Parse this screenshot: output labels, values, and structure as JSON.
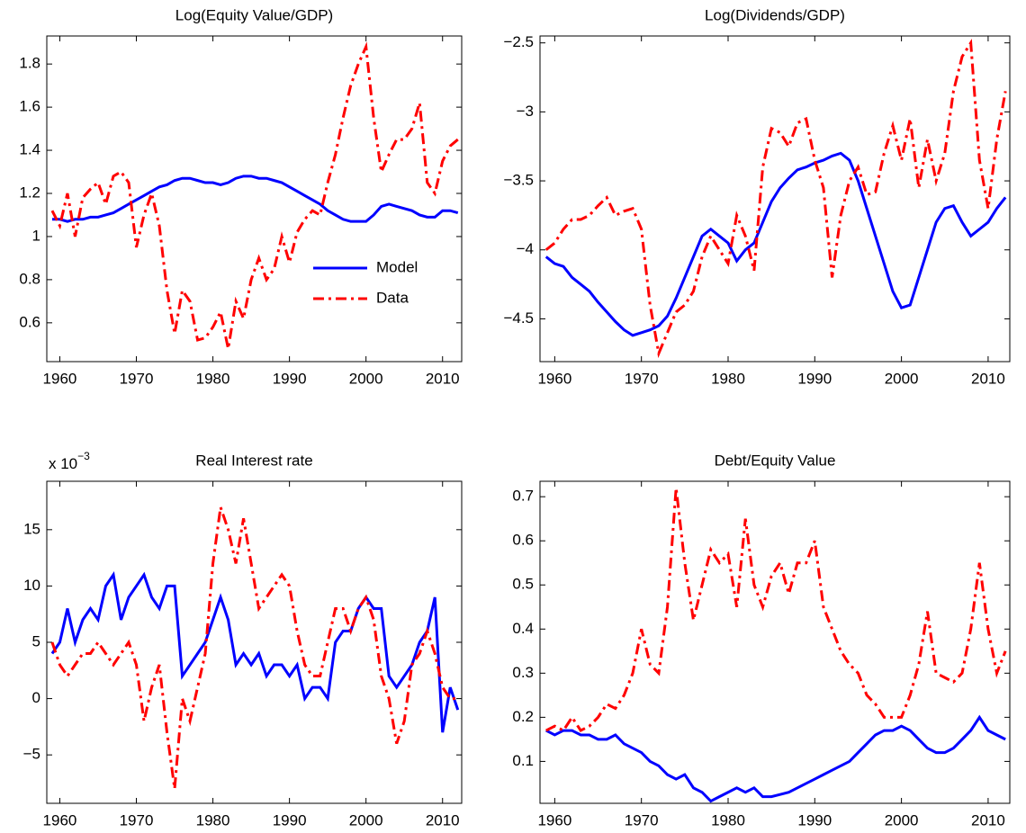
{
  "chart_data": [
    {
      "type": "line",
      "title": "Log(Equity Value/GDP)",
      "x": [
        1959,
        1960,
        1961,
        1962,
        1963,
        1964,
        1965,
        1966,
        1967,
        1968,
        1969,
        1970,
        1971,
        1972,
        1973,
        1974,
        1975,
        1976,
        1977,
        1978,
        1979,
        1980,
        1981,
        1982,
        1983,
        1984,
        1985,
        1986,
        1987,
        1988,
        1989,
        1990,
        1991,
        1992,
        1993,
        1994,
        1995,
        1996,
        1997,
        1998,
        1999,
        2000,
        2001,
        2002,
        2003,
        2004,
        2005,
        2006,
        2007,
        2008,
        2009,
        2010,
        2011,
        2012
      ],
      "series": [
        {
          "name": "Model",
          "color": "#0000ff",
          "linestyle": "solid",
          "values": [
            1.08,
            1.08,
            1.07,
            1.08,
            1.08,
            1.09,
            1.09,
            1.1,
            1.11,
            1.13,
            1.15,
            1.17,
            1.19,
            1.21,
            1.23,
            1.24,
            1.26,
            1.27,
            1.27,
            1.26,
            1.25,
            1.25,
            1.24,
            1.25,
            1.27,
            1.28,
            1.28,
            1.27,
            1.27,
            1.26,
            1.25,
            1.23,
            1.21,
            1.19,
            1.17,
            1.15,
            1.12,
            1.1,
            1.08,
            1.07,
            1.07,
            1.07,
            1.1,
            1.14,
            1.15,
            1.14,
            1.13,
            1.12,
            1.1,
            1.09,
            1.09,
            1.12,
            1.12,
            1.11
          ]
        },
        {
          "name": "Data",
          "color": "#ff0000",
          "linestyle": "dashdot",
          "values": [
            1.12,
            1.05,
            1.2,
            1.0,
            1.18,
            1.22,
            1.25,
            1.15,
            1.28,
            1.3,
            1.25,
            0.95,
            1.1,
            1.2,
            1.05,
            0.75,
            0.55,
            0.75,
            0.7,
            0.52,
            0.53,
            0.58,
            0.65,
            0.48,
            0.7,
            0.62,
            0.8,
            0.9,
            0.8,
            0.85,
            1.0,
            0.88,
            1.02,
            1.08,
            1.12,
            1.1,
            1.25,
            1.38,
            1.55,
            1.7,
            1.8,
            1.88,
            1.55,
            1.3,
            1.38,
            1.45,
            1.45,
            1.5,
            1.62,
            1.25,
            1.2,
            1.35,
            1.42,
            1.45
          ]
        }
      ],
      "xlim": [
        1958.3,
        2012.5
      ],
      "xticks": [
        1960,
        1970,
        1980,
        1990,
        2000,
        2010
      ],
      "ylim": [
        0.42,
        1.93
      ],
      "yticks": [
        0.6,
        0.8,
        1,
        1.2,
        1.4,
        1.6,
        1.8
      ],
      "grid": false,
      "legend": "lower right"
    },
    {
      "type": "line",
      "title": "Log(Dividends/GDP)",
      "x": [
        1959,
        1960,
        1961,
        1962,
        1963,
        1964,
        1965,
        1966,
        1967,
        1968,
        1969,
        1970,
        1971,
        1972,
        1973,
        1974,
        1975,
        1976,
        1977,
        1978,
        1979,
        1980,
        1981,
        1982,
        1983,
        1984,
        1985,
        1986,
        1987,
        1988,
        1989,
        1990,
        1991,
        1992,
        1993,
        1994,
        1995,
        1996,
        1997,
        1998,
        1999,
        2000,
        2001,
        2002,
        2003,
        2004,
        2005,
        2006,
        2007,
        2008,
        2009,
        2010,
        2011,
        2012
      ],
      "series": [
        {
          "color": "#0000ff",
          "linestyle": "solid",
          "values": [
            -4.05,
            -4.1,
            -4.12,
            -4.2,
            -4.25,
            -4.3,
            -4.38,
            -4.45,
            -4.52,
            -4.58,
            -4.62,
            -4.6,
            -4.58,
            -4.55,
            -4.48,
            -4.35,
            -4.2,
            -4.05,
            -3.9,
            -3.85,
            -3.9,
            -3.95,
            -4.08,
            -4.0,
            -3.95,
            -3.8,
            -3.65,
            -3.55,
            -3.48,
            -3.42,
            -3.4,
            -3.37,
            -3.35,
            -3.32,
            -3.3,
            -3.35,
            -3.5,
            -3.7,
            -3.9,
            -4.1,
            -4.3,
            -4.42,
            -4.4,
            -4.2,
            -4.0,
            -3.8,
            -3.7,
            -3.68,
            -3.8,
            -3.9,
            -3.85,
            -3.8,
            -3.7,
            -3.62
          ]
        },
        {
          "color": "#ff0000",
          "linestyle": "dashdot",
          "values": [
            -4.0,
            -3.95,
            -3.85,
            -3.78,
            -3.78,
            -3.75,
            -3.68,
            -3.62,
            -3.75,
            -3.72,
            -3.7,
            -3.85,
            -4.4,
            -4.75,
            -4.6,
            -4.45,
            -4.4,
            -4.3,
            -4.05,
            -3.9,
            -4.0,
            -4.1,
            -3.75,
            -3.9,
            -4.15,
            -3.4,
            -3.12,
            -3.15,
            -3.25,
            -3.08,
            -3.05,
            -3.35,
            -3.55,
            -4.2,
            -3.75,
            -3.5,
            -3.4,
            -3.6,
            -3.58,
            -3.3,
            -3.1,
            -3.35,
            -3.05,
            -3.55,
            -3.2,
            -3.5,
            -3.3,
            -2.85,
            -2.6,
            -2.5,
            -3.35,
            -3.7,
            -3.2,
            -2.85
          ]
        }
      ],
      "xlim": [
        1958.3,
        2012.5
      ],
      "xticks": [
        1960,
        1970,
        1980,
        1990,
        2000,
        2010
      ],
      "ylim": [
        -4.81,
        -2.45
      ],
      "yticks": [
        {
          "value": -4.5,
          "label": "−4.5"
        },
        {
          "value": -4,
          "label": "−4"
        },
        {
          "value": -3.5,
          "label": "−3.5"
        },
        {
          "value": -3,
          "label": "−3"
        },
        {
          "value": -2.5,
          "label": "−2.5"
        }
      ],
      "grid": false
    },
    {
      "type": "line",
      "title": "Real Interest rate",
      "y_multiplier": "x 10",
      "y_multiplier_exponent": "−3",
      "x": [
        1959,
        1960,
        1961,
        1962,
        1963,
        1964,
        1965,
        1966,
        1967,
        1968,
        1969,
        1970,
        1971,
        1972,
        1973,
        1974,
        1975,
        1976,
        1977,
        1978,
        1979,
        1980,
        1981,
        1982,
        1983,
        1984,
        1985,
        1986,
        1987,
        1988,
        1989,
        1990,
        1991,
        1992,
        1993,
        1994,
        1995,
        1996,
        1997,
        1998,
        1999,
        2000,
        2001,
        2002,
        2003,
        2004,
        2005,
        2006,
        2007,
        2008,
        2009,
        2010,
        2011,
        2012
      ],
      "series": [
        {
          "color": "#0000ff",
          "linestyle": "solid",
          "values": [
            4,
            5,
            8,
            5,
            7,
            8,
            7,
            10,
            11,
            7,
            9,
            10,
            11,
            9,
            8,
            10,
            10,
            2,
            3,
            4,
            5,
            7,
            9,
            7,
            3,
            4,
            3,
            4,
            2,
            3,
            3,
            2,
            3,
            0,
            1,
            1,
            0,
            5,
            6,
            6,
            8,
            9,
            8,
            8,
            2,
            1,
            2,
            3,
            5,
            6,
            9,
            -3,
            1,
            -1
          ]
        },
        {
          "color": "#ff0000",
          "linestyle": "dashdot",
          "values": [
            5,
            3,
            2,
            3,
            4,
            4,
            5,
            4,
            3,
            4,
            5,
            3,
            -2,
            1,
            3,
            -3,
            -8,
            0,
            -2,
            1,
            4,
            12,
            17,
            15,
            12,
            16,
            12,
            8,
            9,
            10,
            11,
            10,
            6,
            3,
            2,
            2,
            5,
            8,
            8,
            6,
            8,
            9,
            7,
            2,
            0,
            -4,
            -2,
            3,
            4,
            6,
            4,
            1,
            0,
            0
          ]
        }
      ],
      "xlim": [
        1958.3,
        2012.5
      ],
      "xticks": [
        1960,
        1970,
        1980,
        1990,
        2000,
        2010
      ],
      "ylim": [
        -9.3,
        19.3
      ],
      "yticks": [
        {
          "value": -5,
          "label": "−5"
        },
        0,
        5,
        10,
        15
      ],
      "grid": false
    },
    {
      "type": "line",
      "title": "Debt/Equity Value",
      "x": [
        1959,
        1960,
        1961,
        1962,
        1963,
        1964,
        1965,
        1966,
        1967,
        1968,
        1969,
        1970,
        1971,
        1972,
        1973,
        1974,
        1975,
        1976,
        1977,
        1978,
        1979,
        1980,
        1981,
        1982,
        1983,
        1984,
        1985,
        1986,
        1987,
        1988,
        1989,
        1990,
        1991,
        1992,
        1993,
        1994,
        1995,
        1996,
        1997,
        1998,
        1999,
        2000,
        2001,
        2002,
        2003,
        2004,
        2005,
        2006,
        2007,
        2008,
        2009,
        2010,
        2011,
        2012
      ],
      "series": [
        {
          "color": "#0000ff",
          "linestyle": "solid",
          "values": [
            0.17,
            0.16,
            0.17,
            0.17,
            0.16,
            0.16,
            0.15,
            0.15,
            0.16,
            0.14,
            0.13,
            0.12,
            0.1,
            0.09,
            0.07,
            0.06,
            0.07,
            0.04,
            0.03,
            0.01,
            0.02,
            0.03,
            0.04,
            0.03,
            0.04,
            0.02,
            0.02,
            0.025,
            0.03,
            0.04,
            0.05,
            0.06,
            0.07,
            0.08,
            0.09,
            0.1,
            0.12,
            0.14,
            0.16,
            0.17,
            0.17,
            0.18,
            0.17,
            0.15,
            0.13,
            0.12,
            0.12,
            0.13,
            0.15,
            0.17,
            0.2,
            0.17,
            0.16,
            0.15
          ]
        },
        {
          "color": "#ff0000",
          "linestyle": "dashdot",
          "values": [
            0.17,
            0.18,
            0.17,
            0.2,
            0.17,
            0.18,
            0.2,
            0.23,
            0.22,
            0.25,
            0.3,
            0.4,
            0.32,
            0.3,
            0.45,
            0.72,
            0.55,
            0.42,
            0.5,
            0.58,
            0.55,
            0.57,
            0.45,
            0.65,
            0.5,
            0.45,
            0.52,
            0.55,
            0.48,
            0.55,
            0.55,
            0.6,
            0.45,
            0.4,
            0.35,
            0.32,
            0.3,
            0.25,
            0.23,
            0.2,
            0.2,
            0.2,
            0.25,
            0.32,
            0.44,
            0.3,
            0.29,
            0.28,
            0.3,
            0.4,
            0.55,
            0.4,
            0.3,
            0.35
          ]
        }
      ],
      "xlim": [
        1958.3,
        2012.5
      ],
      "xticks": [
        1960,
        1970,
        1980,
        1990,
        2000,
        2010
      ],
      "ylim": [
        0.005,
        0.735
      ],
      "yticks": [
        0.1,
        0.2,
        0.3,
        0.4,
        0.5,
        0.6,
        0.7
      ],
      "grid": false
    }
  ]
}
